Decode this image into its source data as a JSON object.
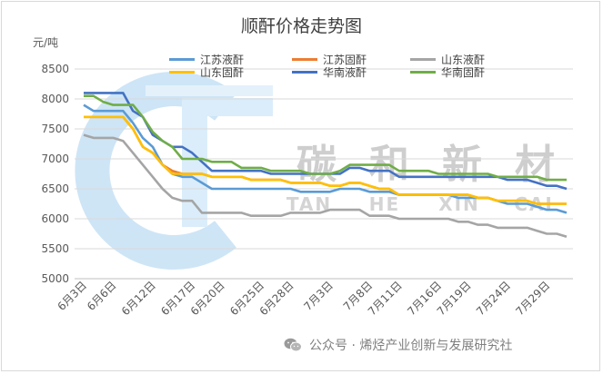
{
  "chart_data": {
    "type": "line",
    "title": "顺酐价格走势图",
    "ylabel": "元/吨",
    "ylim": [
      5000,
      8500
    ],
    "yticks": [
      5000,
      5500,
      6000,
      6500,
      7000,
      7500,
      8000,
      8500
    ],
    "x_tick_labels": [
      "6月3日",
      "6月6日",
      "6月12日",
      "6月17日",
      "6月20日",
      "6月25日",
      "6月28日",
      "7月3日",
      "7月8日",
      "7月11日",
      "7月16日",
      "7月19日",
      "7月24日",
      "7月29日"
    ],
    "x_tick_positions": [
      0,
      3,
      7,
      11,
      14,
      18,
      21,
      25,
      29,
      32,
      36,
      39,
      43,
      47
    ],
    "grid": "horizontal",
    "legend_position": "top",
    "series": [
      {
        "name": "江苏液酐",
        "color": "#5B9BD5",
        "values": [
          7900,
          7800,
          7800,
          7800,
          7800,
          7600,
          7350,
          7200,
          6900,
          6750,
          6700,
          6700,
          6600,
          6500,
          6500,
          6500,
          6500,
          6500,
          6500,
          6500,
          6500,
          6500,
          6450,
          6450,
          6450,
          6450,
          6500,
          6500,
          6500,
          6450,
          6450,
          6450,
          6400,
          6400,
          6400,
          6400,
          6400,
          6400,
          6350,
          6350,
          6350,
          6350,
          6300,
          6250,
          6250,
          6250,
          6200,
          6150,
          6150,
          6100
        ]
      },
      {
        "name": "江苏固酐",
        "color": "#ED7D31",
        "values": [
          7700,
          7700,
          7700,
          7700,
          7700,
          7500,
          7200,
          7100,
          6900,
          6800,
          6750,
          6750,
          6750,
          6700,
          6700,
          6700,
          6700,
          6650,
          6650,
          6650,
          6650,
          6600,
          6600,
          6600,
          6600,
          6550,
          6550,
          6600,
          6600,
          6550,
          6500,
          6500,
          6400,
          6400,
          6400,
          6400,
          6400,
          6400,
          6400,
          6400,
          6350,
          6350,
          6300,
          6300,
          6300,
          6300,
          6250,
          6250,
          6250,
          6250
        ]
      },
      {
        "name": "山东液酐",
        "color": "#A5A5A5",
        "values": [
          7400,
          7350,
          7350,
          7350,
          7300,
          7100,
          6900,
          6700,
          6500,
          6350,
          6300,
          6300,
          6100,
          6100,
          6100,
          6100,
          6100,
          6050,
          6050,
          6050,
          6050,
          6100,
          6100,
          6100,
          6100,
          6150,
          6150,
          6150,
          6150,
          6050,
          6050,
          6050,
          6000,
          6000,
          6000,
          6000,
          6000,
          6000,
          5950,
          5950,
          5900,
          5900,
          5850,
          5850,
          5850,
          5850,
          5800,
          5750,
          5750,
          5700
        ]
      },
      {
        "name": "山东固酐",
        "color": "#FFC000",
        "values": [
          7700,
          7700,
          7700,
          7700,
          7700,
          7500,
          7200,
          7100,
          6900,
          6750,
          6750,
          6750,
          6750,
          6700,
          6700,
          6700,
          6700,
          6650,
          6650,
          6650,
          6650,
          6600,
          6600,
          6600,
          6600,
          6550,
          6550,
          6600,
          6600,
          6550,
          6500,
          6500,
          6400,
          6400,
          6400,
          6400,
          6400,
          6400,
          6400,
          6400,
          6350,
          6350,
          6300,
          6300,
          6300,
          6300,
          6250,
          6250,
          6250,
          6250
        ]
      },
      {
        "name": "华南液酐",
        "color": "#4472C4",
        "values": [
          8100,
          8100,
          8100,
          8100,
          8100,
          7800,
          7700,
          7400,
          7300,
          7200,
          7200,
          7100,
          6950,
          6800,
          6800,
          6800,
          6800,
          6800,
          6800,
          6750,
          6750,
          6750,
          6750,
          6750,
          6750,
          6750,
          6750,
          6850,
          6850,
          6800,
          6800,
          6800,
          6700,
          6700,
          6700,
          6700,
          6700,
          6700,
          6700,
          6700,
          6700,
          6700,
          6700,
          6650,
          6650,
          6650,
          6600,
          6550,
          6550,
          6500
        ]
      },
      {
        "name": "华南固酐",
        "color": "#70AD47",
        "values": [
          8050,
          8050,
          7950,
          7900,
          7900,
          7900,
          7700,
          7450,
          7300,
          7200,
          7000,
          7000,
          7000,
          6950,
          6950,
          6950,
          6850,
          6850,
          6850,
          6800,
          6800,
          6800,
          6800,
          6750,
          6750,
          6750,
          6800,
          6900,
          6900,
          6900,
          6900,
          6900,
          6800,
          6800,
          6800,
          6800,
          6750,
          6750,
          6750,
          6750,
          6750,
          6750,
          6700,
          6700,
          6700,
          6700,
          6700,
          6650,
          6650,
          6650
        ]
      }
    ]
  },
  "watermark": {
    "chars": [
      "碳",
      "和",
      "新",
      "材"
    ],
    "latin": [
      "TAN",
      "HE",
      "XIN",
      "CAI"
    ]
  },
  "footer": {
    "text": "公众号 · 烯烃产业创新与发展研究社",
    "icon": "wechat-icon"
  }
}
